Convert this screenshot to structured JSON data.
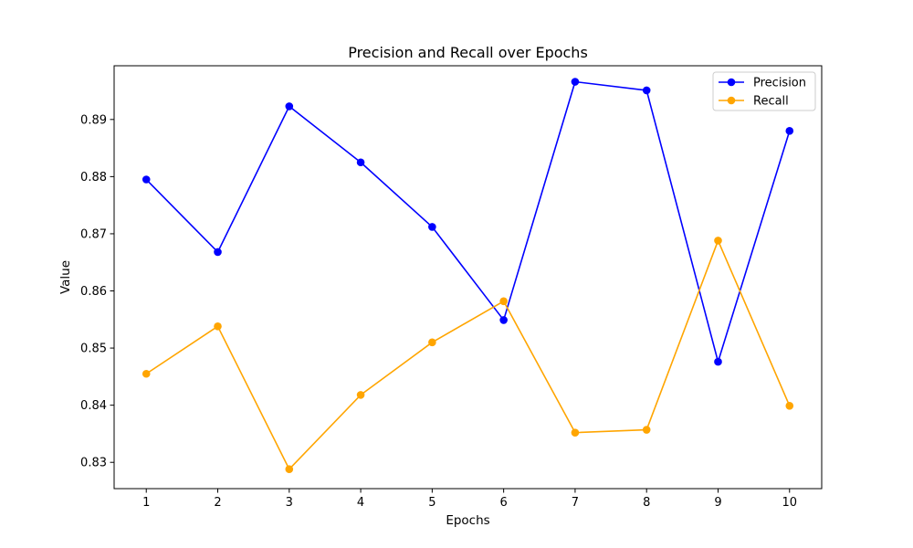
{
  "chart_data": {
    "type": "line",
    "title": "Precision and Recall over Epochs",
    "xlabel": "Epochs",
    "ylabel": "Value",
    "x": [
      1,
      2,
      3,
      4,
      5,
      6,
      7,
      8,
      9,
      10
    ],
    "xticks": [
      "1",
      "2",
      "3",
      "4",
      "5",
      "6",
      "7",
      "8",
      "9",
      "10"
    ],
    "xlim": [
      0.55,
      10.45
    ],
    "ylim": [
      0.8254,
      0.8994
    ],
    "yticks": [
      0.83,
      0.84,
      0.85,
      0.86,
      0.87,
      0.88,
      0.89
    ],
    "ytick_labels": [
      "0.83",
      "0.84",
      "0.85",
      "0.86",
      "0.87",
      "0.88",
      "0.89"
    ],
    "grid": false,
    "legend_position": "top-right",
    "series": [
      {
        "name": "Precision",
        "color": "#0000ff",
        "marker": "circle",
        "values": [
          0.8795,
          0.8668,
          0.8923,
          0.8825,
          0.8712,
          0.8549,
          0.8966,
          0.8951,
          0.8476,
          0.888
        ]
      },
      {
        "name": "Recall",
        "color": "#ffa500",
        "marker": "circle",
        "values": [
          0.8455,
          0.8538,
          0.8288,
          0.8418,
          0.851,
          0.8582,
          0.8352,
          0.8357,
          0.8688,
          0.8399
        ]
      }
    ]
  }
}
